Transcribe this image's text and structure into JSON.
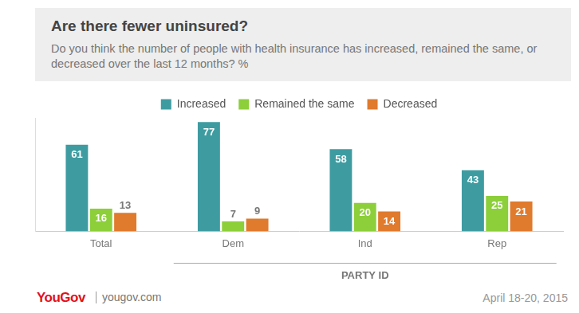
{
  "chart_data": {
    "type": "bar",
    "title": "Are there fewer uninsured?",
    "subtitle": "Do you think the number of people with health insurance has increased, remained the same, or decreased over the last 12 months? %",
    "categories": [
      "Total",
      "Dem",
      "Ind",
      "Rep"
    ],
    "series": [
      {
        "name": "Increased",
        "color": "#3e9ca1",
        "values": [
          61,
          77,
          58,
          43
        ]
      },
      {
        "name": "Remained the same",
        "color": "#8ccf3a",
        "values": [
          16,
          7,
          20,
          25
        ]
      },
      {
        "name": "Decreased",
        "color": "#e07a2c",
        "values": [
          13,
          9,
          14,
          21
        ]
      }
    ],
    "ylim": [
      0,
      80
    ],
    "grid": false,
    "legend": "top",
    "data_labels": true,
    "tick_labels": "x",
    "annotations": [
      "PARTY ID",
      "YouGov",
      "yougov.com",
      "April 18-20, 2015"
    ]
  }
}
